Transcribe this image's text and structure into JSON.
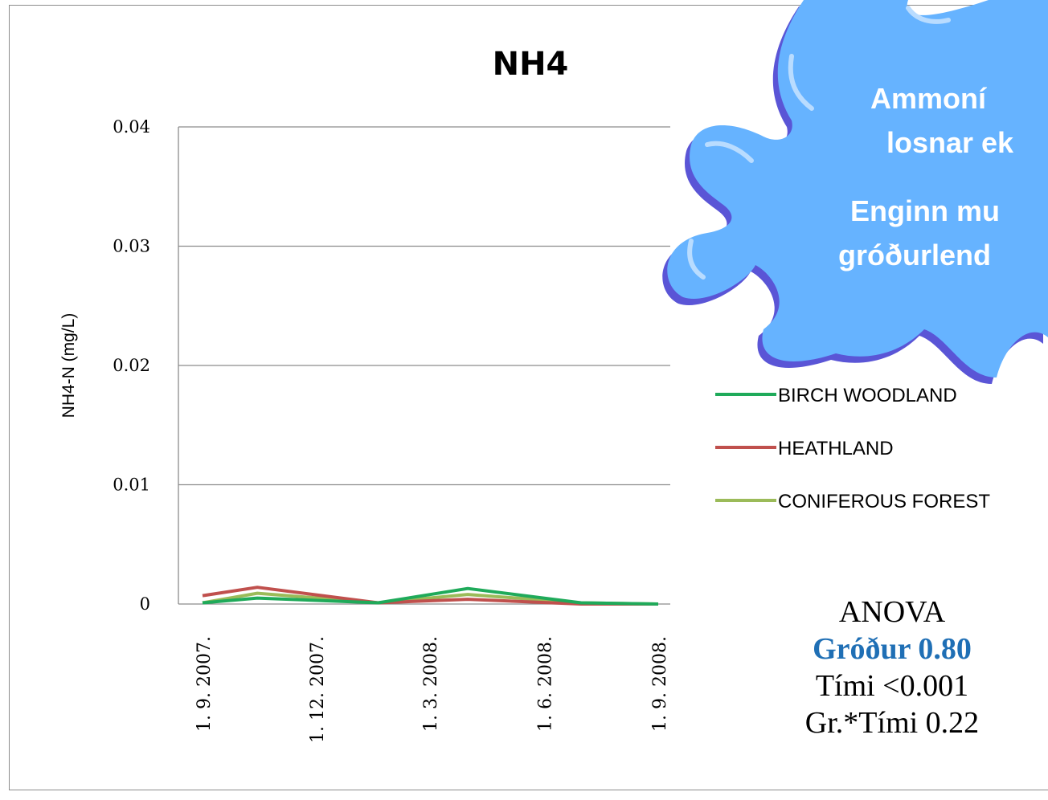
{
  "chart_data": {
    "type": "line",
    "title": "NH4",
    "ylabel": "NH4-N (mg/L)",
    "xlabel": "",
    "ylim": [
      0,
      0.04
    ],
    "yticks": [
      0,
      0.01,
      0.02,
      0.03,
      0.04
    ],
    "ytick_labels": [
      "0",
      "0.01",
      "0.02",
      "0.03",
      "0.04"
    ],
    "xtick_labels": [
      "1. 9. 2007.",
      "1. 12. 2007.",
      "1. 3. 2008.",
      "1. 6. 2008.",
      "1. 9. 2008."
    ],
    "x": [
      "2007-09-01",
      "2007-10-15",
      "2008-01-20",
      "2008-04-01",
      "2008-07-01",
      "2008-09-01"
    ],
    "grid": true,
    "legend_position": "right",
    "series": [
      {
        "name": "BIRCH WOODLAND",
        "color": "#1faa5a",
        "values": [
          0.0001,
          0.0005,
          0.0001,
          0.0013,
          0.0001,
          0.0
        ]
      },
      {
        "name": "HEATHLAND",
        "color": "#c0504d",
        "values": [
          0.0007,
          0.0014,
          0.0001,
          0.0004,
          0.0,
          0.0
        ]
      },
      {
        "name": "CONIFEROUS FOREST",
        "color": "#9bbb59",
        "values": [
          0.0001,
          0.0009,
          0.0001,
          0.0008,
          0.0001,
          0.0
        ]
      }
    ]
  },
  "callout": {
    "line1": "Ammoní",
    "line2": "losnar ek",
    "line3": "Enginn mu",
    "line4": "gróðurlend",
    "fill_color": "#66b3ff"
  },
  "anova": {
    "heading": "ANOVA",
    "row1": "Gróður 0.80",
    "row2": "Tími <0.001",
    "row3": "Gr.*Tími 0.22",
    "highlight_color": "#1f6fb5"
  }
}
